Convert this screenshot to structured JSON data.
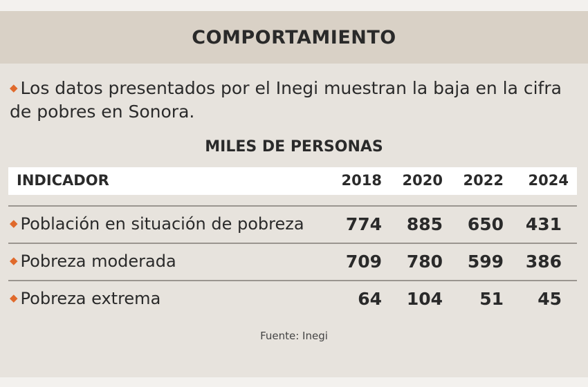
{
  "header": {
    "title": "COMPORTAMIENTO"
  },
  "intro": {
    "text": "Los datos presentados por el Inegi muestran la baja en la cifra de pobres en Sonora."
  },
  "chart_data": {
    "type": "table",
    "title": "MILES DE PERSONAS",
    "columns": [
      "INDICADOR",
      "2018",
      "2020",
      "2022",
      "2024"
    ],
    "rows": [
      {
        "label": "Población en situación de pobreza",
        "values": [
          "774",
          "885",
          "650",
          "431"
        ]
      },
      {
        "label": "Pobreza moderada",
        "values": [
          "709",
          "780",
          "599",
          "386"
        ]
      },
      {
        "label": "Pobreza extrema",
        "values": [
          "64",
          "104",
          "51",
          "45"
        ]
      }
    ],
    "source": "Fuente: Inegi"
  },
  "colors": {
    "header_bg": "#d9d1c6",
    "bullet": "#e06a2c",
    "page_bg": "#e7e3dd"
  }
}
